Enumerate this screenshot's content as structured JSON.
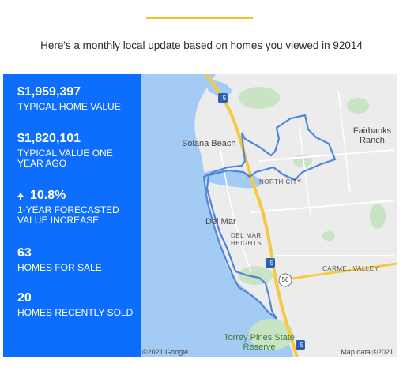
{
  "header": {
    "intro_text": "Here's a monthly local update based on homes you viewed in 92014"
  },
  "stats": {
    "typical_value": "$1,959,397",
    "typical_value_label": "TYPICAL HOME VALUE",
    "year_ago_value": "$1,820,101",
    "year_ago_label": "TYPICAL VALUE ONE YEAR AGO",
    "forecast_value": "10.8%",
    "forecast_label": "1-YEAR FORECASTED VALUE INCREASE",
    "forecast_icon": "up-arrow-icon",
    "for_sale_value": "63",
    "for_sale_label": "HOMES FOR SALE",
    "sold_value": "20",
    "sold_label": "HOMES RECENTLY SOLD"
  },
  "map": {
    "labels": {
      "solana_beach": "Solana Beach",
      "fairbanks_ranch": "Fairbanks Ranch",
      "north_city": "NORTH CITY",
      "del_mar": "Del Mar",
      "del_mar_heights": "DEL MAR HEIGHTS",
      "carmel_valley": "CARMEL VALLEY",
      "torrey_pines": "Torrey Pines State Reserve"
    },
    "shields": {
      "i5_top": "5",
      "i5_mid": "5",
      "i5_bottom": "5",
      "route56": "56"
    },
    "credit_left": "©2021 Google",
    "credit_right": "Map data ©2021",
    "colors": {
      "ocean": "#a4cbf4",
      "land": "#ececec",
      "boundary": "#4f86d8",
      "highway": "#f6c843"
    }
  },
  "colors": {
    "panel": "#0d6efd",
    "accent": "#f6c026"
  }
}
